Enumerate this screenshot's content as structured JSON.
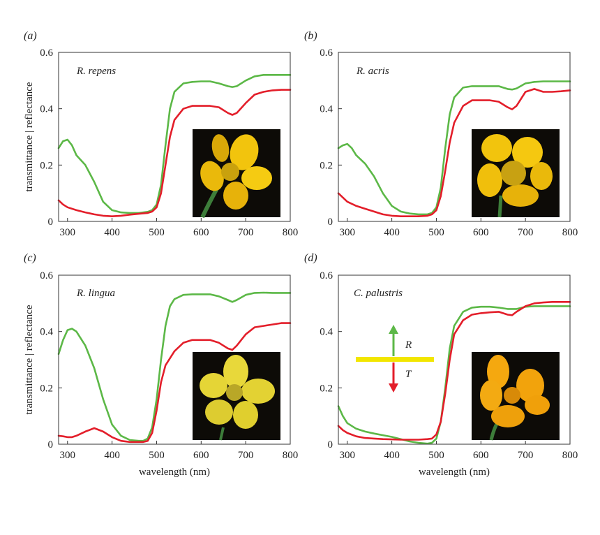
{
  "figure": {
    "shared_ylabel": "transmittance | reflectance",
    "shared_xlabel": "wavelength (nm)",
    "colors": {
      "green": "#5cb847",
      "red": "#e31e2a",
      "inset_bar": "#f2e600",
      "photo_bg": "#0d0b07"
    },
    "inset_legend": {
      "upper_label": "R",
      "lower_label": "T"
    }
  },
  "chart_data": [
    {
      "type": "line",
      "panel_letter": "(a)",
      "species": "R. repens",
      "xlabel": "",
      "ylabel": "transmittance | reflectance",
      "xlim": [
        280,
        800
      ],
      "ylim": [
        0,
        0.6
      ],
      "xticks": [
        300,
        400,
        500,
        600,
        700,
        800
      ],
      "yticks": [
        "0",
        "0.2",
        "0.4",
        "0.6"
      ],
      "grid": false,
      "inset_photo": "flower-photo-open-side-view",
      "series": [
        {
          "color": "#5cb847",
          "x": [
            280,
            290,
            300,
            310,
            320,
            340,
            360,
            380,
            400,
            420,
            440,
            460,
            480,
            490,
            500,
            510,
            520,
            530,
            540,
            560,
            580,
            600,
            620,
            640,
            660,
            670,
            680,
            700,
            720,
            740,
            760,
            780,
            800
          ],
          "y": [
            0.26,
            0.285,
            0.29,
            0.27,
            0.235,
            0.2,
            0.14,
            0.07,
            0.04,
            0.032,
            0.03,
            0.03,
            0.034,
            0.04,
            0.06,
            0.13,
            0.27,
            0.4,
            0.46,
            0.49,
            0.495,
            0.497,
            0.497,
            0.49,
            0.48,
            0.477,
            0.48,
            0.5,
            0.515,
            0.52,
            0.52,
            0.52,
            0.52
          ]
        },
        {
          "color": "#e31e2a",
          "x": [
            280,
            290,
            300,
            320,
            340,
            360,
            380,
            400,
            420,
            440,
            460,
            480,
            490,
            500,
            510,
            520,
            530,
            540,
            560,
            580,
            600,
            620,
            640,
            660,
            670,
            680,
            700,
            720,
            740,
            760,
            780,
            800
          ],
          "y": [
            0.075,
            0.06,
            0.05,
            0.04,
            0.032,
            0.025,
            0.02,
            0.018,
            0.02,
            0.024,
            0.027,
            0.03,
            0.035,
            0.05,
            0.1,
            0.2,
            0.3,
            0.36,
            0.4,
            0.41,
            0.41,
            0.41,
            0.405,
            0.385,
            0.378,
            0.385,
            0.42,
            0.45,
            0.46,
            0.465,
            0.467,
            0.467
          ]
        }
      ]
    },
    {
      "type": "line",
      "panel_letter": "(b)",
      "species": "R. acris",
      "xlabel": "",
      "ylabel": "",
      "xlim": [
        280,
        800
      ],
      "ylim": [
        0,
        0.6
      ],
      "xticks": [
        300,
        400,
        500,
        600,
        700,
        800
      ],
      "yticks": [
        "0",
        "0.2",
        "0.4",
        "0.6"
      ],
      "grid": false,
      "inset_photo": "flower-photo-cup-front-view",
      "series": [
        {
          "color": "#5cb847",
          "x": [
            280,
            290,
            300,
            310,
            320,
            340,
            360,
            380,
            400,
            420,
            440,
            460,
            480,
            490,
            500,
            510,
            520,
            530,
            540,
            560,
            580,
            600,
            620,
            640,
            660,
            670,
            680,
            700,
            720,
            740,
            760,
            780,
            800
          ],
          "y": [
            0.26,
            0.27,
            0.275,
            0.26,
            0.235,
            0.205,
            0.16,
            0.1,
            0.055,
            0.035,
            0.028,
            0.025,
            0.025,
            0.03,
            0.05,
            0.12,
            0.26,
            0.38,
            0.44,
            0.475,
            0.48,
            0.48,
            0.48,
            0.48,
            0.47,
            0.468,
            0.472,
            0.49,
            0.495,
            0.497,
            0.497,
            0.497,
            0.497
          ]
        },
        {
          "color": "#e31e2a",
          "x": [
            280,
            300,
            320,
            340,
            360,
            380,
            400,
            420,
            440,
            460,
            480,
            490,
            500,
            510,
            520,
            530,
            540,
            560,
            580,
            600,
            620,
            640,
            660,
            670,
            680,
            700,
            720,
            740,
            760,
            780,
            800
          ],
          "y": [
            0.1,
            0.07,
            0.055,
            0.045,
            0.035,
            0.025,
            0.02,
            0.018,
            0.018,
            0.018,
            0.02,
            0.025,
            0.04,
            0.09,
            0.18,
            0.28,
            0.35,
            0.41,
            0.43,
            0.43,
            0.43,
            0.425,
            0.405,
            0.398,
            0.41,
            0.46,
            0.47,
            0.46,
            0.46,
            0.462,
            0.465
          ]
        }
      ]
    },
    {
      "type": "line",
      "panel_letter": "(c)",
      "species": "R. lingua",
      "xlabel": "wavelength (nm)",
      "ylabel": "transmittance | reflectance",
      "xlim": [
        280,
        800
      ],
      "ylim": [
        0,
        0.6
      ],
      "xticks": [
        300,
        400,
        500,
        600,
        700,
        800
      ],
      "yticks": [
        "0",
        "0.2",
        "0.4",
        "0.6"
      ],
      "grid": false,
      "inset_photo": "flower-photo-flat-front-view",
      "series": [
        {
          "color": "#5cb847",
          "x": [
            280,
            290,
            300,
            310,
            320,
            340,
            360,
            380,
            400,
            420,
            440,
            460,
            470,
            480,
            490,
            500,
            510,
            520,
            530,
            540,
            560,
            580,
            600,
            620,
            640,
            660,
            670,
            680,
            700,
            720,
            740,
            760,
            780,
            800
          ],
          "y": [
            0.32,
            0.37,
            0.405,
            0.41,
            0.4,
            0.35,
            0.27,
            0.16,
            0.07,
            0.03,
            0.015,
            0.012,
            0.012,
            0.02,
            0.06,
            0.16,
            0.3,
            0.42,
            0.49,
            0.515,
            0.53,
            0.532,
            0.532,
            0.532,
            0.525,
            0.512,
            0.505,
            0.512,
            0.53,
            0.537,
            0.538,
            0.537,
            0.537,
            0.537
          ]
        },
        {
          "color": "#e31e2a",
          "x": [
            280,
            290,
            300,
            310,
            320,
            340,
            360,
            380,
            400,
            420,
            440,
            460,
            470,
            480,
            490,
            500,
            510,
            520,
            540,
            560,
            580,
            600,
            620,
            640,
            660,
            670,
            680,
            700,
            720,
            740,
            760,
            780,
            800
          ],
          "y": [
            0.03,
            0.028,
            0.025,
            0.025,
            0.03,
            0.045,
            0.057,
            0.045,
            0.025,
            0.012,
            0.008,
            0.008,
            0.008,
            0.012,
            0.04,
            0.12,
            0.22,
            0.28,
            0.33,
            0.36,
            0.37,
            0.37,
            0.37,
            0.36,
            0.34,
            0.335,
            0.35,
            0.39,
            0.415,
            0.42,
            0.425,
            0.43,
            0.43
          ]
        }
      ]
    },
    {
      "type": "line",
      "panel_letter": "(d)",
      "species": "C. palustris",
      "xlabel": "wavelength (nm)",
      "ylabel": "",
      "xlim": [
        280,
        800
      ],
      "ylim": [
        0,
        0.6
      ],
      "xticks": [
        300,
        400,
        500,
        600,
        700,
        800
      ],
      "yticks": [
        "0",
        "0.2",
        "0.4",
        "0.6"
      ],
      "grid": false,
      "inset_photo": "flower-photo-orange-cup",
      "series": [
        {
          "color": "#5cb847",
          "x": [
            280,
            290,
            300,
            320,
            340,
            360,
            380,
            400,
            420,
            440,
            460,
            480,
            490,
            500,
            510,
            520,
            530,
            540,
            560,
            580,
            600,
            620,
            640,
            660,
            680,
            700,
            720,
            740,
            760,
            780,
            800
          ],
          "y": [
            0.135,
            0.1,
            0.075,
            0.055,
            0.045,
            0.038,
            0.032,
            0.026,
            0.018,
            0.01,
            0.005,
            0.002,
            0.005,
            0.02,
            0.08,
            0.2,
            0.34,
            0.42,
            0.47,
            0.485,
            0.488,
            0.488,
            0.485,
            0.48,
            0.48,
            0.488,
            0.49,
            0.49,
            0.49,
            0.49,
            0.49
          ]
        },
        {
          "color": "#e31e2a",
          "x": [
            280,
            290,
            300,
            320,
            340,
            360,
            380,
            400,
            420,
            440,
            460,
            480,
            490,
            500,
            510,
            520,
            530,
            540,
            560,
            580,
            600,
            620,
            640,
            660,
            670,
            680,
            700,
            720,
            740,
            760,
            780,
            800
          ],
          "y": [
            0.065,
            0.05,
            0.04,
            0.028,
            0.022,
            0.02,
            0.018,
            0.017,
            0.016,
            0.016,
            0.016,
            0.018,
            0.02,
            0.035,
            0.08,
            0.18,
            0.3,
            0.39,
            0.44,
            0.46,
            0.465,
            0.468,
            0.47,
            0.46,
            0.458,
            0.47,
            0.49,
            0.5,
            0.503,
            0.505,
            0.505,
            0.505
          ]
        }
      ]
    }
  ]
}
